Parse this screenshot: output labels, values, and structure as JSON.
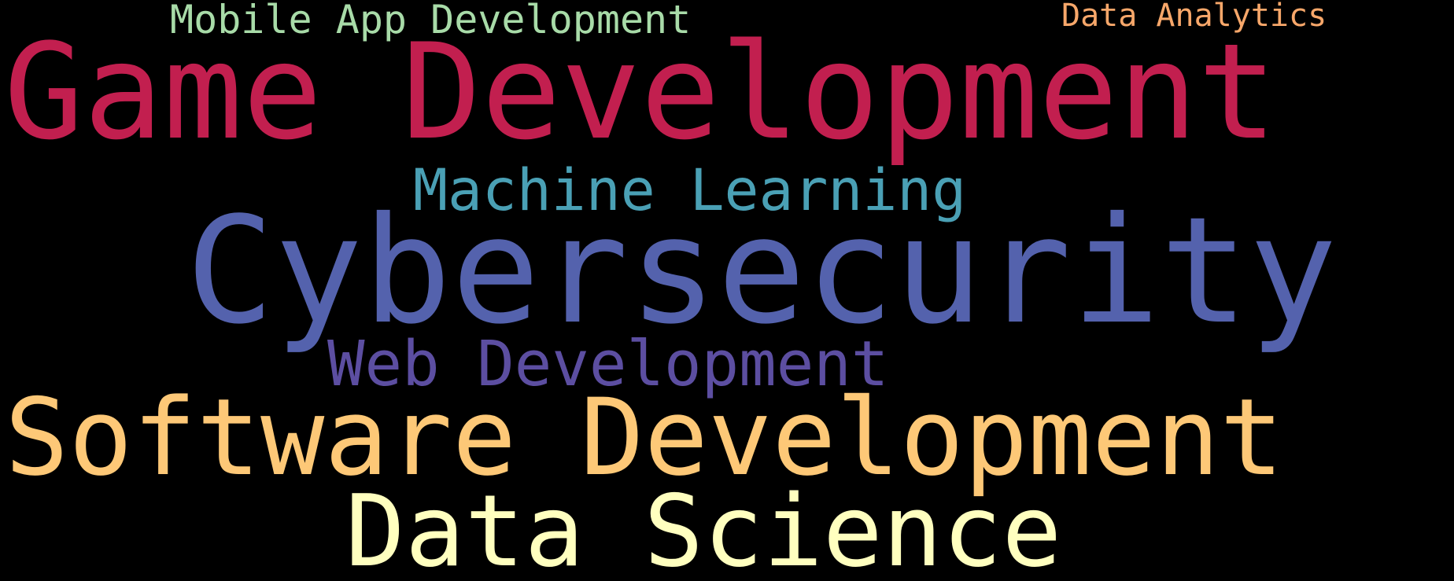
{
  "word_cloud": {
    "background": "#000000",
    "words": [
      {
        "text": "Mobile App Development",
        "color": "#a8dba8"
      },
      {
        "text": "Data Analytics",
        "color": "#f7a76a"
      },
      {
        "text": "Game Development",
        "color": "#c21f4f"
      },
      {
        "text": "Machine Learning",
        "color": "#4aa0b5"
      },
      {
        "text": "Cybersecurity",
        "color": "#5462ad"
      },
      {
        "text": "Web Development",
        "color": "#5c4ea1"
      },
      {
        "text": "Software Development",
        "color": "#fdc877"
      },
      {
        "text": "Data Science",
        "color": "#ffffbf"
      }
    ]
  }
}
